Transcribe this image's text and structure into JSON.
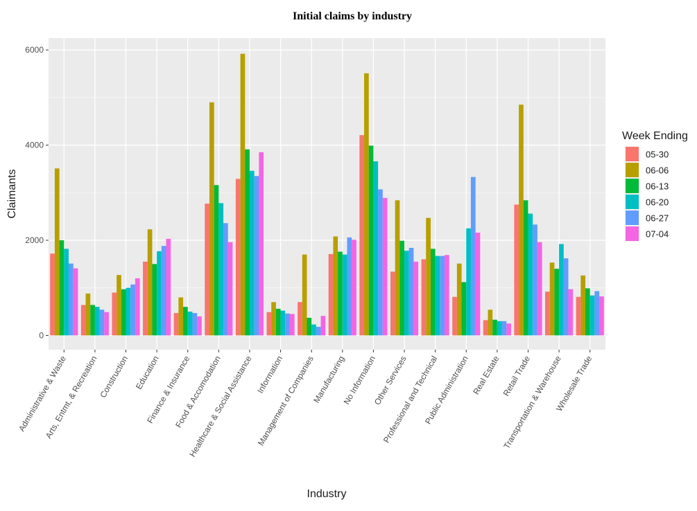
{
  "chart_data": {
    "type": "bar",
    "title": "Initial claims by industry",
    "xlabel": "Industry",
    "ylabel": "Claimants",
    "ylim": [
      -300,
      6250
    ],
    "yticks": [
      0,
      2000,
      4000,
      6000
    ],
    "grid": true,
    "legend": {
      "title": "Week Ending",
      "placement": "right"
    },
    "categories": [
      "Administrative & Waste",
      "Arts, Entmt, & Recreation",
      "Construction",
      "Education",
      "Finance & Insurance",
      "Food & Accomodation",
      "Healthcare & Social Assistance",
      "Information",
      "Management of Companies",
      "Manufacturing",
      "No Information",
      "Other Services",
      "Professional and Technical",
      "Public Administration",
      "Real Estate",
      "Retail Trade",
      "Transportation & Warehouse",
      "Wholesale Trade"
    ],
    "series": [
      {
        "name": "05-30",
        "color": "#F8766D",
        "values": [
          1720,
          640,
          900,
          1550,
          470,
          2770,
          3290,
          490,
          700,
          1710,
          4210,
          1340,
          1600,
          810,
          320,
          2750,
          920,
          810
        ]
      },
      {
        "name": "06-06",
        "color": "#B79F00",
        "values": [
          3510,
          880,
          1270,
          2230,
          800,
          4900,
          5920,
          700,
          1700,
          2080,
          5510,
          2840,
          2470,
          1510,
          540,
          4850,
          1530,
          1260
        ]
      },
      {
        "name": "06-13",
        "color": "#00BA38",
        "values": [
          2000,
          640,
          970,
          1500,
          600,
          3160,
          3910,
          560,
          370,
          1760,
          3990,
          1990,
          1820,
          1120,
          330,
          2840,
          1400,
          990
        ]
      },
      {
        "name": "06-20",
        "color": "#00BFC4",
        "values": [
          1820,
          600,
          1000,
          1770,
          500,
          2780,
          3460,
          520,
          230,
          1700,
          3660,
          1780,
          1670,
          2250,
          300,
          2560,
          1920,
          840
        ]
      },
      {
        "name": "06-27",
        "color": "#619CFF",
        "values": [
          1510,
          540,
          1070,
          1880,
          470,
          2360,
          3350,
          460,
          180,
          2060,
          3070,
          1840,
          1670,
          3330,
          300,
          2330,
          1620,
          930
        ]
      },
      {
        "name": "07-04",
        "color": "#F564E3",
        "values": [
          1410,
          490,
          1200,
          2030,
          400,
          1960,
          3850,
          450,
          410,
          2010,
          2890,
          1550,
          1690,
          2160,
          250,
          1960,
          970,
          820
        ]
      }
    ]
  }
}
